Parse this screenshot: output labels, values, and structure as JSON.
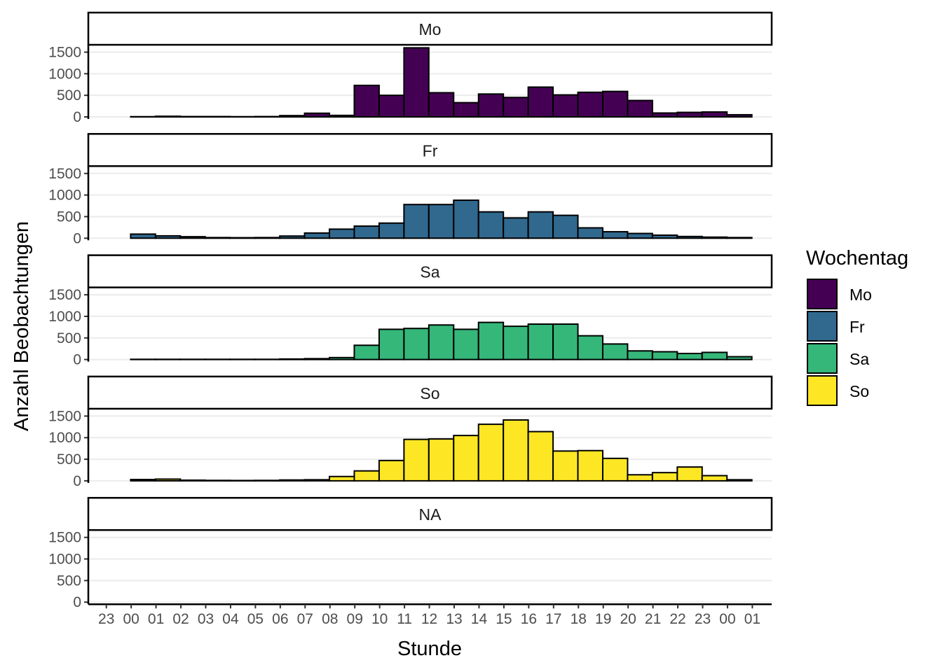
{
  "chart_data": {
    "type": "bar",
    "xlabel": "Stunde",
    "ylabel": "Anzahl Beobachtungen",
    "x_tick_labels": [
      "23",
      "00",
      "01",
      "02",
      "03",
      "04",
      "05",
      "06",
      "07",
      "08",
      "09",
      "10",
      "11",
      "12",
      "13",
      "14",
      "15",
      "16",
      "17",
      "18",
      "19",
      "20",
      "21",
      "22",
      "23",
      "00",
      "01"
    ],
    "categories": [
      "00",
      "01",
      "02",
      "03",
      "04",
      "05",
      "06",
      "07",
      "08",
      "09",
      "10",
      "11",
      "12",
      "13",
      "14",
      "15",
      "16",
      "17",
      "18",
      "19",
      "20",
      "21",
      "22",
      "23",
      "00"
    ],
    "y_ticks": [
      "0",
      "500",
      "1000",
      "1500"
    ],
    "ylim": [
      0,
      1680
    ],
    "grid": true,
    "legend": {
      "title": "Wochentag",
      "placement": "right",
      "entries": [
        {
          "label": "Mo",
          "color": "#440154"
        },
        {
          "label": "Fr",
          "color": "#31688E"
        },
        {
          "label": "Sa",
          "color": "#35B779"
        },
        {
          "label": "So",
          "color": "#FDE725"
        }
      ]
    },
    "facets": [
      {
        "label": "Mo",
        "color": "#440154",
        "values": [
          5,
          15,
          8,
          8,
          5,
          8,
          30,
          85,
          35,
          730,
          500,
          1600,
          560,
          330,
          530,
          450,
          690,
          510,
          570,
          590,
          380,
          90,
          105,
          115,
          50
        ]
      },
      {
        "label": "Fr",
        "color": "#31688E",
        "values": [
          95,
          55,
          35,
          15,
          12,
          15,
          50,
          120,
          210,
          280,
          350,
          780,
          780,
          880,
          610,
          470,
          610,
          530,
          240,
          150,
          110,
          70,
          40,
          25,
          15
        ]
      },
      {
        "label": "Sa",
        "color": "#35B779",
        "values": [
          5,
          5,
          5,
          5,
          5,
          5,
          12,
          20,
          45,
          330,
          700,
          720,
          800,
          700,
          860,
          770,
          820,
          820,
          550,
          360,
          200,
          180,
          140,
          165,
          65
        ]
      },
      {
        "label": "So",
        "color": "#FDE725",
        "values": [
          30,
          40,
          15,
          10,
          8,
          10,
          20,
          25,
          100,
          230,
          470,
          960,
          970,
          1050,
          1310,
          1410,
          1140,
          690,
          700,
          520,
          140,
          190,
          320,
          120,
          25
        ]
      },
      {
        "label": "NA",
        "color": "#808080",
        "values": []
      }
    ]
  }
}
